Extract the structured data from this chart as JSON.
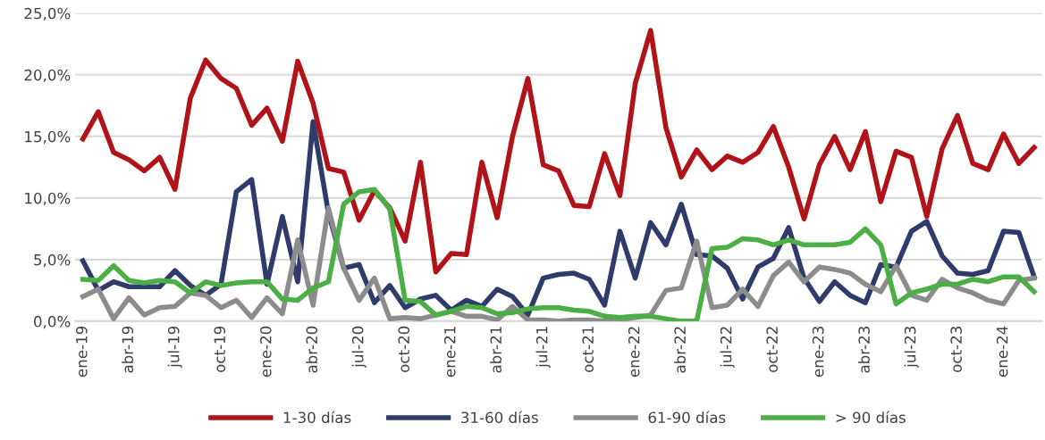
{
  "chart_data": {
    "type": "line",
    "categories": [
      "ene-19",
      null,
      null,
      "abr-19",
      null,
      null,
      "jul-19",
      null,
      null,
      "oct-19",
      null,
      null,
      "ene-20",
      null,
      null,
      "abr-20",
      null,
      null,
      "jul-20",
      null,
      null,
      "oct-20",
      null,
      null,
      "ene-21",
      null,
      null,
      "abr-21",
      null,
      null,
      "jul-21",
      null,
      null,
      "oct-21",
      null,
      null,
      "ene-22",
      null,
      null,
      "abr-22",
      null,
      null,
      "jul-22",
      null,
      null,
      "oct-22",
      null,
      null,
      "ene-23",
      null,
      null,
      "abr-23",
      null,
      null,
      "jul-23",
      null,
      null,
      "oct-23",
      null,
      null,
      "ene-24",
      null,
      null
    ],
    "series": [
      {
        "name": "1-30 días",
        "color": "#b01419",
        "values": [
          14.8,
          17.0,
          13.7,
          13.1,
          12.2,
          13.3,
          10.7,
          18.1,
          21.2,
          19.7,
          18.9,
          15.9,
          17.3,
          14.6,
          21.1,
          17.7,
          12.4,
          12.1,
          8.2,
          10.6,
          9.2,
          6.5,
          12.9,
          4.0,
          5.5,
          5.4,
          12.9,
          8.4,
          15.0,
          19.7,
          12.7,
          12.2,
          9.4,
          9.3,
          13.6,
          10.2,
          19.3,
          23.6,
          15.7,
          11.7,
          13.9,
          12.3,
          13.4,
          12.9,
          13.7,
          15.8,
          12.5,
          8.3,
          12.7,
          15.0,
          12.3,
          15.4,
          9.7,
          13.8,
          13.3,
          8.5,
          14.0,
          16.7,
          12.8,
          12.3,
          15.2,
          12.8,
          14.1
        ]
      },
      {
        "name": "31-60 días",
        "color": "#2e3b6b",
        "values": [
          4.9,
          2.5,
          3.2,
          2.8,
          2.8,
          2.8,
          4.1,
          2.9,
          2.1,
          3.0,
          10.5,
          11.5,
          3.0,
          8.5,
          3.2,
          16.2,
          8.8,
          4.3,
          4.6,
          1.5,
          2.9,
          1.1,
          1.8,
          2.1,
          0.9,
          1.7,
          1.2,
          2.6,
          2.0,
          0.5,
          3.5,
          3.8,
          3.9,
          3.4,
          1.3,
          7.3,
          3.5,
          8.0,
          6.2,
          9.5,
          5.4,
          5.3,
          4.3,
          1.8,
          4.4,
          5.1,
          7.6,
          3.5,
          1.6,
          3.2,
          2.1,
          1.5,
          4.6,
          4.4,
          7.3,
          8.1,
          5.3,
          3.9,
          3.8,
          4.1,
          7.3,
          7.2,
          3.6
        ]
      },
      {
        "name": "61-90 días",
        "color": "#8c8c8c",
        "values": [
          2.0,
          2.6,
          0.2,
          1.9,
          0.5,
          1.1,
          1.2,
          2.3,
          2.1,
          1.1,
          1.7,
          0.3,
          1.9,
          0.6,
          6.6,
          1.3,
          9.2,
          4.3,
          1.7,
          3.5,
          0.2,
          0.3,
          0.2,
          0.5,
          0.8,
          0.4,
          0.4,
          0.1,
          1.2,
          0.1,
          0.1,
          0.0,
          0.1,
          0.1,
          0.0,
          0.1,
          0.3,
          0.5,
          2.5,
          2.7,
          6.5,
          1.1,
          1.3,
          2.6,
          1.2,
          3.7,
          4.8,
          3.2,
          4.4,
          4.2,
          3.9,
          3.0,
          2.4,
          4.5,
          2.1,
          1.7,
          3.4,
          2.7,
          2.3,
          1.7,
          1.4,
          3.3,
          3.5
        ]
      },
      {
        "name": "> 90 días",
        "color": "#4caf45",
        "values": [
          3.4,
          3.3,
          4.5,
          3.3,
          3.1,
          3.3,
          3.2,
          2.3,
          3.2,
          2.9,
          3.1,
          3.2,
          3.2,
          1.8,
          1.7,
          2.7,
          3.2,
          9.5,
          10.5,
          10.7,
          9.1,
          1.7,
          1.6,
          0.5,
          0.8,
          1.2,
          1.1,
          0.6,
          0.7,
          1.0,
          1.1,
          1.1,
          0.9,
          0.8,
          0.4,
          0.3,
          0.4,
          0.4,
          0.2,
          0.0,
          0.0,
          5.9,
          6.0,
          6.7,
          6.6,
          6.2,
          6.6,
          6.2,
          6.2,
          6.2,
          6.4,
          7.5,
          6.2,
          1.4,
          2.3,
          2.6,
          3.0,
          3.0,
          3.4,
          3.2,
          3.6,
          3.6,
          2.4
        ]
      }
    ],
    "ylim": [
      0,
      25
    ],
    "yticks": [
      {
        "value": 0,
        "label": "0,0%"
      },
      {
        "value": 5,
        "label": "5,0%"
      },
      {
        "value": 10,
        "label": "10,0%"
      },
      {
        "value": 15,
        "label": "15,0%"
      },
      {
        "value": 20,
        "label": "20,0%"
      },
      {
        "value": 25,
        "label": "25,0%"
      }
    ],
    "grid": "y",
    "legend": "bottom",
    "marker": "none",
    "line_style": "solid"
  }
}
